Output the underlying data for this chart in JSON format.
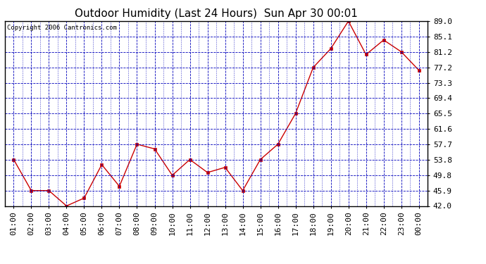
{
  "title": "Outdoor Humidity (Last 24 Hours)  Sun Apr 30 00:01",
  "copyright": "Copyright 2006 Cantronics.com",
  "x_labels": [
    "01:00",
    "02:00",
    "03:00",
    "04:00",
    "05:00",
    "06:00",
    "07:00",
    "08:00",
    "09:00",
    "10:00",
    "11:00",
    "12:00",
    "13:00",
    "14:00",
    "15:00",
    "16:00",
    "17:00",
    "18:00",
    "19:00",
    "20:00",
    "21:00",
    "22:00",
    "23:00",
    "00:00"
  ],
  "y_values": [
    53.8,
    45.9,
    45.9,
    42.0,
    44.0,
    52.5,
    47.0,
    57.7,
    56.5,
    49.8,
    53.8,
    50.5,
    51.8,
    45.9,
    53.8,
    57.7,
    65.5,
    77.2,
    82.0,
    89.0,
    80.5,
    84.2,
    81.2,
    76.5
  ],
  "line_color": "#cc0000",
  "marker_color": "#cc0000",
  "bg_color": "#ffffff",
  "plot_bg_color": "#ffffff",
  "grid_color": "#0000bb",
  "axis_color": "#000000",
  "title_color": "#000000",
  "copyright_color": "#000000",
  "y_ticks": [
    42.0,
    45.9,
    49.8,
    53.8,
    57.7,
    61.6,
    65.5,
    69.4,
    73.3,
    77.2,
    81.2,
    85.1,
    89.0
  ],
  "ylim": [
    42.0,
    89.0
  ],
  "title_fontsize": 11,
  "copyright_fontsize": 6.5,
  "tick_fontsize": 8
}
